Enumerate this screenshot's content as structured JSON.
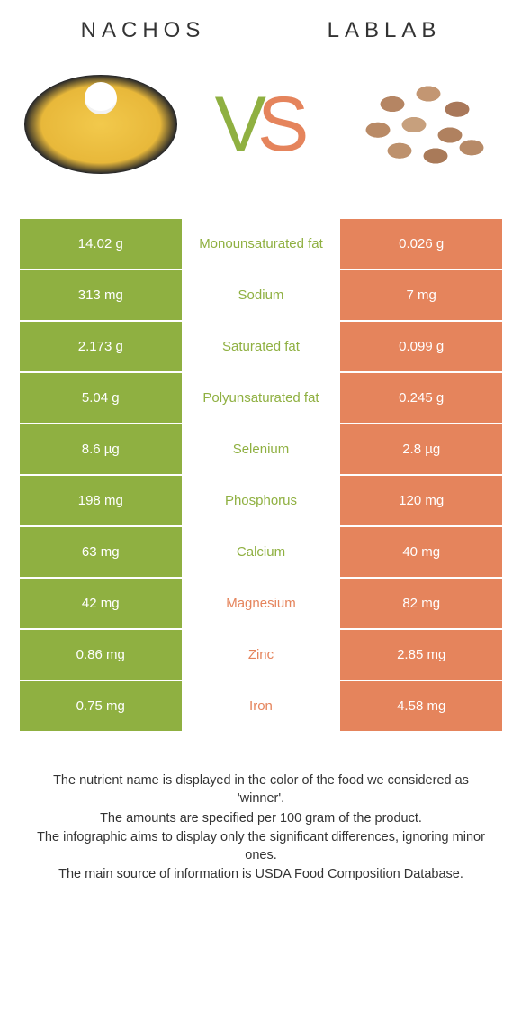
{
  "titles": {
    "left": "NACHOS",
    "right": "LABLAB"
  },
  "vs": {
    "v": "V",
    "s": "S"
  },
  "colors": {
    "left_bar": "#8fb041",
    "right_bar": "#e5845c",
    "left_text": "#8fb041",
    "right_text": "#e5845c",
    "white": "#ffffff"
  },
  "rows": [
    {
      "left": "14.02 g",
      "mid": "Monounsaturated fat",
      "right": "0.026 g",
      "winner": "left"
    },
    {
      "left": "313 mg",
      "mid": "Sodium",
      "right": "7 mg",
      "winner": "left"
    },
    {
      "left": "2.173 g",
      "mid": "Saturated fat",
      "right": "0.099 g",
      "winner": "left"
    },
    {
      "left": "5.04 g",
      "mid": "Polyunsaturated fat",
      "right": "0.245 g",
      "winner": "left"
    },
    {
      "left": "8.6 µg",
      "mid": "Selenium",
      "right": "2.8 µg",
      "winner": "left"
    },
    {
      "left": "198 mg",
      "mid": "Phosphorus",
      "right": "120 mg",
      "winner": "left"
    },
    {
      "left": "63 mg",
      "mid": "Calcium",
      "right": "40 mg",
      "winner": "left"
    },
    {
      "left": "42 mg",
      "mid": "Magnesium",
      "right": "82 mg",
      "winner": "right"
    },
    {
      "left": "0.86 mg",
      "mid": "Zinc",
      "right": "2.85 mg",
      "winner": "right"
    },
    {
      "left": "0.75 mg",
      "mid": "Iron",
      "right": "4.58 mg",
      "winner": "right"
    }
  ],
  "footer": [
    "The nutrient name is displayed in the color of the food we considered as 'winner'.",
    "The amounts are specified per 100 gram of the product.",
    "The infographic aims to display only the significant differences, ignoring minor ones.",
    "The main source of information is USDA Food Composition Database."
  ]
}
